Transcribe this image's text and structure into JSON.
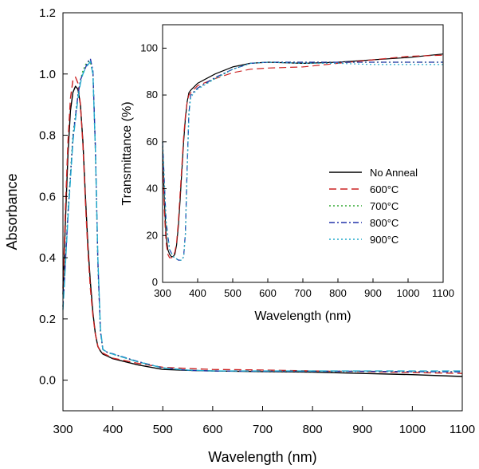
{
  "chart_data": [
    {
      "type": "line",
      "title": "",
      "xlabel": "Wavelength (nm)",
      "ylabel": "Absorbance",
      "xlim": [
        300,
        1100
      ],
      "ylim": [
        -0.1,
        1.2
      ],
      "xticks": [
        300,
        400,
        500,
        600,
        700,
        800,
        900,
        1000,
        1100
      ],
      "yticks": [
        0.0,
        0.2,
        0.4,
        0.6,
        0.8,
        1.0,
        1.2
      ],
      "ytick_labels": [
        "0.0",
        "0.2",
        "0.4",
        "0.6",
        "0.8",
        "1.0",
        "1.2"
      ],
      "grid": false,
      "series": [
        {
          "name": "No Anneal",
          "color": "#000000",
          "dash": "solid",
          "x": [
            300,
            305,
            310,
            315,
            320,
            325,
            330,
            335,
            340,
            345,
            350,
            355,
            360,
            365,
            370,
            375,
            380,
            390,
            400,
            450,
            500,
            550,
            600,
            700,
            800,
            900,
            1000,
            1100
          ],
          "y": [
            0.28,
            0.52,
            0.74,
            0.88,
            0.94,
            0.96,
            0.95,
            0.9,
            0.78,
            0.6,
            0.44,
            0.32,
            0.22,
            0.15,
            0.11,
            0.095,
            0.085,
            0.078,
            0.07,
            0.05,
            0.035,
            0.032,
            0.03,
            0.028,
            0.026,
            0.022,
            0.018,
            0.012
          ]
        },
        {
          "name": "600°C",
          "color": "#cc2222",
          "dash": "dashed",
          "x": [
            300,
            305,
            310,
            315,
            320,
            325,
            330,
            335,
            340,
            345,
            350,
            355,
            360,
            365,
            370,
            375,
            380,
            390,
            400,
            450,
            500,
            550,
            600,
            700,
            800,
            900,
            1000,
            1100
          ],
          "y": [
            0.3,
            0.56,
            0.78,
            0.92,
            0.98,
            0.99,
            0.97,
            0.9,
            0.77,
            0.58,
            0.42,
            0.3,
            0.21,
            0.15,
            0.11,
            0.095,
            0.088,
            0.08,
            0.072,
            0.055,
            0.042,
            0.038,
            0.035,
            0.033,
            0.03,
            0.028,
            0.025,
            0.022
          ]
        },
        {
          "name": "700°C",
          "color": "#33aa33",
          "dash": "dotted",
          "x": [
            300,
            310,
            320,
            330,
            335,
            340,
            345,
            350,
            355,
            360,
            365,
            370,
            375,
            380,
            390,
            400,
            450,
            500,
            550,
            600,
            700,
            800,
            900,
            1000,
            1100
          ],
          "y": [
            0.24,
            0.55,
            0.8,
            0.93,
            0.98,
            1.01,
            1.03,
            1.04,
            1.04,
            1.0,
            0.75,
            0.38,
            0.16,
            0.1,
            0.09,
            0.085,
            0.06,
            0.04,
            0.032,
            0.03,
            0.029,
            0.029,
            0.029,
            0.028,
            0.028
          ]
        },
        {
          "name": "800°C",
          "color": "#2233aa",
          "dash": "dashdot",
          "x": [
            300,
            310,
            320,
            330,
            335,
            340,
            345,
            350,
            355,
            360,
            365,
            370,
            375,
            380,
            390,
            400,
            450,
            500,
            550,
            600,
            700,
            800,
            900,
            1000,
            1100
          ],
          "y": [
            0.24,
            0.54,
            0.79,
            0.93,
            0.98,
            1.0,
            1.02,
            1.04,
            1.05,
            1.01,
            0.76,
            0.39,
            0.16,
            0.1,
            0.09,
            0.086,
            0.061,
            0.04,
            0.032,
            0.03,
            0.029,
            0.029,
            0.029,
            0.028,
            0.027
          ]
        },
        {
          "name": "900°C",
          "color": "#22aacc",
          "dash": "dashed",
          "x": [
            300,
            310,
            320,
            330,
            335,
            340,
            345,
            350,
            355,
            360,
            365,
            370,
            375,
            380,
            390,
            400,
            450,
            500,
            550,
            600,
            700,
            800,
            900,
            1000,
            1100
          ],
          "y": [
            0.23,
            0.53,
            0.78,
            0.92,
            0.97,
            1.0,
            1.02,
            1.03,
            1.04,
            1.0,
            0.75,
            0.4,
            0.17,
            0.1,
            0.09,
            0.085,
            0.06,
            0.04,
            0.033,
            0.03,
            0.03,
            0.03,
            0.03,
            0.03,
            0.03
          ]
        }
      ]
    },
    {
      "type": "line",
      "title": "",
      "xlabel": "Wavelength (nm)",
      "ylabel": "Transmittance (%)",
      "xlim": [
        300,
        1100
      ],
      "ylim": [
        0,
        110
      ],
      "xticks": [
        300,
        400,
        500,
        600,
        700,
        800,
        900,
        1000,
        1100
      ],
      "yticks": [
        0,
        20,
        40,
        60,
        80,
        100
      ],
      "grid": false,
      "legend": "right",
      "series": [
        {
          "name": "No Anneal",
          "color": "#000000",
          "dash": "solid",
          "x": [
            300,
            305,
            310,
            315,
            320,
            325,
            330,
            335,
            340,
            345,
            350,
            355,
            360,
            365,
            370,
            375,
            380,
            400,
            450,
            500,
            550,
            600,
            700,
            800,
            900,
            1000,
            1100
          ],
          "y": [
            58,
            35,
            20,
            14,
            12,
            11,
            11,
            12,
            16,
            24,
            35,
            48,
            60,
            70,
            77,
            81,
            82,
            85,
            89,
            92,
            93.5,
            94,
            93.5,
            94,
            95,
            96,
            97.5
          ]
        },
        {
          "name": "600°C",
          "color": "#cc2222",
          "dash": "dashed",
          "x": [
            300,
            305,
            310,
            315,
            320,
            325,
            330,
            335,
            340,
            345,
            350,
            355,
            360,
            365,
            370,
            375,
            380,
            400,
            450,
            500,
            550,
            600,
            700,
            800,
            900,
            1000,
            1100
          ],
          "y": [
            55,
            30,
            17,
            12,
            10.5,
            10.5,
            11,
            13,
            17,
            26,
            38,
            50,
            62,
            71,
            77,
            80,
            81,
            84,
            87,
            89.5,
            91,
            91.5,
            92,
            93.5,
            95,
            96.5,
            97
          ]
        },
        {
          "name": "700°C",
          "color": "#33aa33",
          "dash": "dotted",
          "x": [
            300,
            310,
            320,
            330,
            340,
            345,
            350,
            355,
            360,
            365,
            370,
            375,
            380,
            390,
            400,
            450,
            500,
            550,
            600,
            700,
            800,
            900,
            1000,
            1100
          ],
          "y": [
            60,
            25,
            14,
            11,
            10,
            9.5,
            9.5,
            9.5,
            11,
            20,
            48,
            72,
            80,
            81.5,
            83,
            87,
            91,
            93.5,
            94,
            94,
            94,
            94,
            94,
            94
          ]
        },
        {
          "name": "800°C",
          "color": "#2233aa",
          "dash": "dashdot",
          "x": [
            300,
            310,
            320,
            330,
            340,
            345,
            350,
            355,
            360,
            365,
            370,
            375,
            380,
            390,
            400,
            450,
            500,
            550,
            600,
            700,
            800,
            900,
            1000,
            1100
          ],
          "y": [
            60,
            26,
            14,
            11,
            10,
            9.5,
            9.5,
            9.5,
            11,
            21,
            49,
            72,
            80,
            81.5,
            83,
            87.5,
            91,
            93.5,
            94,
            94,
            94,
            94,
            94,
            94
          ]
        },
        {
          "name": "900°C",
          "color": "#22aacc",
          "dash": "dotted",
          "x": [
            300,
            310,
            320,
            330,
            340,
            345,
            350,
            355,
            360,
            365,
            370,
            375,
            380,
            390,
            400,
            450,
            500,
            550,
            600,
            700,
            800,
            900,
            1000,
            1100
          ],
          "y": [
            60,
            26,
            14,
            11,
            10,
            9.5,
            9.5,
            9.5,
            11,
            20,
            47,
            71,
            79,
            81,
            82.5,
            87,
            91,
            93.5,
            94,
            93.5,
            93.5,
            93,
            93,
            93
          ]
        }
      ]
    }
  ]
}
